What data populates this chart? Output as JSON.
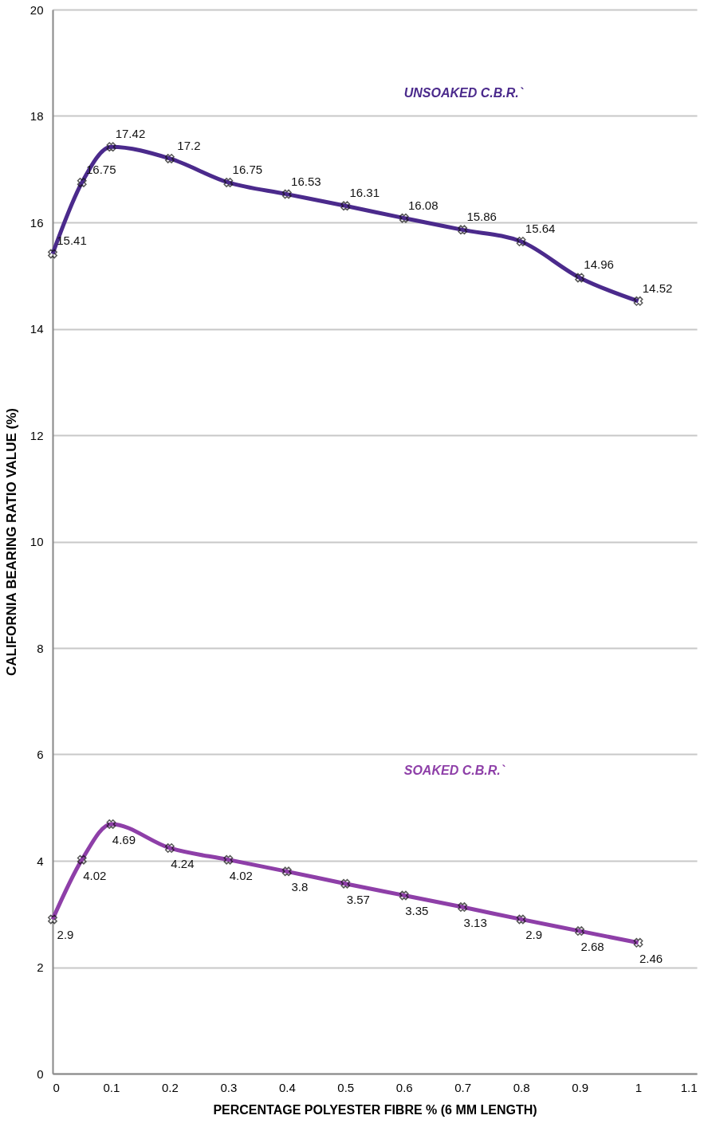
{
  "chart_data": {
    "type": "line",
    "xlabel": "PERCENTAGE POLYESTER FIBRE % (6 MM LENGTH)",
    "ylabel": "CALIFORNIA BEARING RATIO VALUE (%)",
    "x": [
      0,
      0.05,
      0.1,
      0.2,
      0.3,
      0.4,
      0.5,
      0.6,
      0.7,
      0.8,
      0.9,
      1
    ],
    "series": [
      {
        "name": "UNSOAKED C.B.R.`",
        "color": "#4b2a8c",
        "values": [
          15.41,
          16.75,
          17.42,
          17.2,
          16.75,
          16.53,
          16.31,
          16.08,
          15.86,
          15.64,
          14.96,
          14.52
        ]
      },
      {
        "name": "SOAKED C.B.R.`",
        "color": "#8e3fa8",
        "values": [
          2.9,
          4.02,
          4.69,
          4.24,
          4.02,
          3.8,
          3.57,
          3.35,
          3.13,
          2.9,
          2.68,
          2.46
        ]
      }
    ],
    "xlim": [
      0,
      1.1
    ],
    "xticks": [
      0,
      0.1,
      0.2,
      0.3,
      0.4,
      0.5,
      0.6,
      0.7,
      0.8,
      0.9,
      1,
      1.1
    ],
    "ylim": [
      0,
      20
    ],
    "yticks": [
      0,
      2,
      4,
      6,
      8,
      10,
      12,
      14,
      16,
      18,
      20
    ],
    "grid": "y",
    "marker": "cross",
    "data_labels": true,
    "line_style": "solid"
  }
}
